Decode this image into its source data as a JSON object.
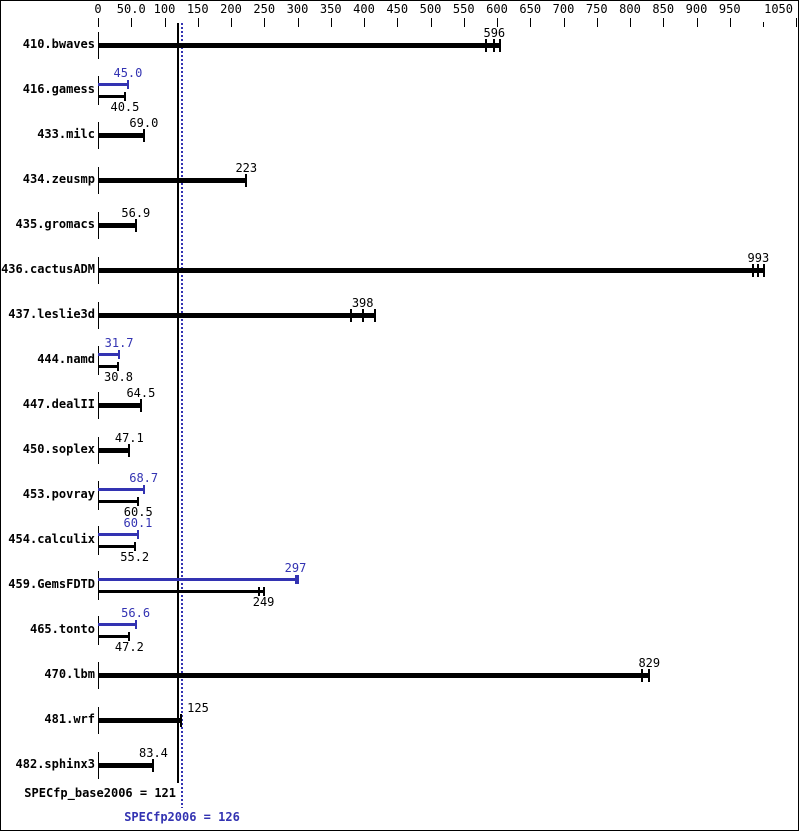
{
  "chart_data": {
    "type": "bar",
    "orientation": "horizontal",
    "title": "",
    "grid": false,
    "legend": false,
    "axis": {
      "position": "top",
      "min": 0,
      "max": 1050,
      "tick_step": 50,
      "tick_labels": [
        "0",
        "50.0",
        "100",
        "150",
        "200",
        "250",
        "300",
        "350",
        "400",
        "450",
        "500",
        "550",
        "600",
        "650",
        "700",
        "750",
        "800",
        "850",
        "900",
        "950",
        "",
        "1050"
      ]
    },
    "series_colors": {
      "base": "#000000",
      "peak": "#3333b2"
    },
    "benchmarks": [
      {
        "name": "410.bwaves",
        "base": {
          "value": 596,
          "label": "596",
          "run_ticks": [
            584,
            596,
            604
          ]
        }
      },
      {
        "name": "416.gamess",
        "peak": {
          "value": 45.0,
          "label": "45.0"
        },
        "base": {
          "value": 40.5,
          "label": "40.5"
        }
      },
      {
        "name": "433.milc",
        "base": {
          "value": 69.0,
          "label": "69.0"
        }
      },
      {
        "name": "434.zeusmp",
        "base": {
          "value": 223,
          "label": "223"
        }
      },
      {
        "name": "435.gromacs",
        "base": {
          "value": 56.9,
          "label": "56.9"
        }
      },
      {
        "name": "436.cactusADM",
        "base": {
          "value": 993,
          "label": "993",
          "run_ticks": [
            985,
            993,
            1002
          ]
        }
      },
      {
        "name": "437.leslie3d",
        "base": {
          "value": 398,
          "label": "398",
          "run_ticks": [
            380,
            398,
            416
          ]
        }
      },
      {
        "name": "444.namd",
        "peak": {
          "value": 31.7,
          "label": "31.7"
        },
        "base": {
          "value": 30.8,
          "label": "30.8"
        }
      },
      {
        "name": "447.dealII",
        "base": {
          "value": 64.5,
          "label": "64.5"
        }
      },
      {
        "name": "450.soplex",
        "base": {
          "value": 47.1,
          "label": "47.1"
        }
      },
      {
        "name": "453.povray",
        "peak": {
          "value": 68.7,
          "label": "68.7"
        },
        "base": {
          "value": 60.5,
          "label": "60.5"
        }
      },
      {
        "name": "454.calculix",
        "peak": {
          "value": 60.1,
          "label": "60.1"
        },
        "base": {
          "value": 55.2,
          "label": "55.2"
        }
      },
      {
        "name": "459.GemsFDTD",
        "peak": {
          "value": 297,
          "label": "297",
          "thick_cap": true
        },
        "base": {
          "value": 249,
          "label": "249",
          "run_ticks": [
            242,
            249
          ]
        }
      },
      {
        "name": "465.tonto",
        "peak": {
          "value": 56.6,
          "label": "56.6"
        },
        "base": {
          "value": 47.2,
          "label": "47.2"
        }
      },
      {
        "name": "470.lbm",
        "base": {
          "value": 829,
          "label": "829",
          "run_ticks": [
            818,
            829
          ]
        }
      },
      {
        "name": "481.wrf",
        "base": {
          "value": 125,
          "label": "125",
          "label_side": "right"
        }
      },
      {
        "name": "482.sphinx3",
        "base": {
          "value": 83.4,
          "label": "83.4"
        }
      }
    ],
    "reference_lines": [
      {
        "label": "SPECfp_base2006 = 121",
        "value": 121,
        "style": "solid",
        "color": "#000000"
      },
      {
        "label": "SPECfp2006 = 126",
        "value": 126,
        "style": "dotted",
        "color": "#3333b2"
      }
    ]
  }
}
